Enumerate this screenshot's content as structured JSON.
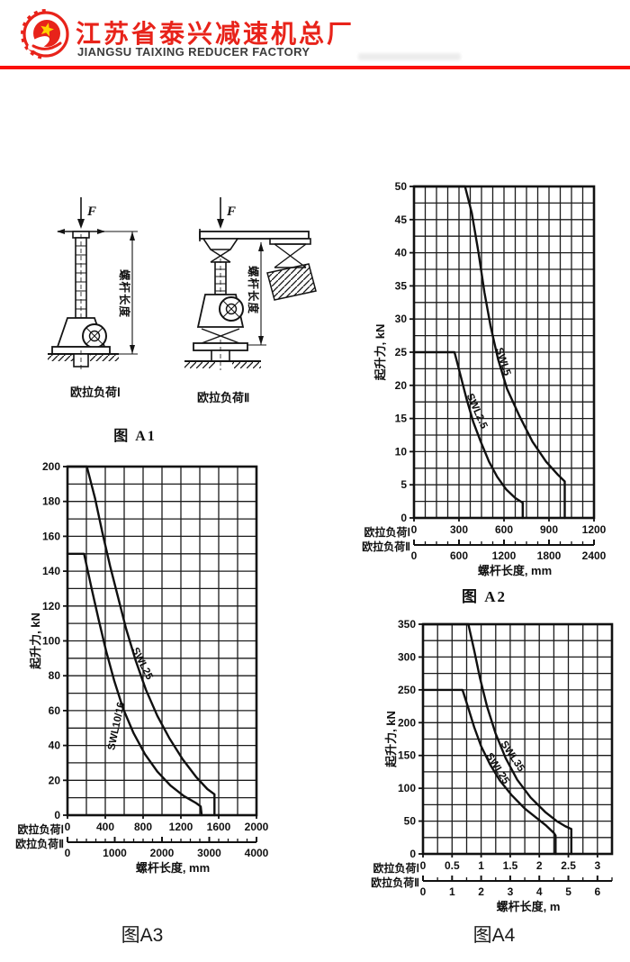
{
  "page": {
    "background": "#ffffff",
    "ink": "#161616"
  },
  "header": {
    "company_name_cn": "江苏省泰兴减速机总厂",
    "company_name_en": "JIANGSU TAIXING REDUCER FACTORY",
    "brand_red": "#e8231a",
    "divider_color": "#fb0f07",
    "en_color": "#3c3c3c",
    "logo_icon": "gear-star-emblem",
    "logo_star_color": "#ffd200"
  },
  "figure_a1": {
    "caption": "图 A1",
    "force_label": "F",
    "screw_length_label": "螺杆长度",
    "left_load_label": "欧拉负荷Ⅰ",
    "right_load_label": "欧拉负荷Ⅱ"
  },
  "chart_data": [
    {
      "id": "A2",
      "type": "line",
      "caption": "图 A2",
      "ylabel": "起升力, kN",
      "xlabel": "螺杆长度, mm",
      "ylim": [
        0,
        50
      ],
      "y_major": 5,
      "y_minor": 2.5,
      "xlim": [
        0,
        1200
      ],
      "x_major": 300,
      "x_minor": 75,
      "axis1_label": "欧拉负荷Ⅰ",
      "axis2_label": "欧拉负荷Ⅱ",
      "axis2": {
        "max": 2400,
        "major": 600,
        "minor": 150
      },
      "grid": true,
      "legend_position": "labels-along-curves",
      "series": [
        {
          "name": "SWL5",
          "points": [
            [
              0,
              50
            ],
            [
              340,
              50
            ],
            [
              385,
              46
            ],
            [
              430,
              40
            ],
            [
              470,
              34
            ],
            [
              510,
              29
            ],
            [
              560,
              24
            ],
            [
              620,
              19.5
            ],
            [
              700,
              15.5
            ],
            [
              790,
              11.5
            ],
            [
              880,
              8.5
            ],
            [
              960,
              6.5
            ],
            [
              1005,
              5.5
            ],
            [
              1005,
              0
            ]
          ]
        },
        {
          "name": "SWL2.5",
          "points": [
            [
              0,
              25
            ],
            [
              270,
              25
            ],
            [
              310,
              21.5
            ],
            [
              350,
              18
            ],
            [
              395,
              14.5
            ],
            [
              445,
              11.5
            ],
            [
              500,
              8.5
            ],
            [
              555,
              6.2
            ],
            [
              615,
              4.3
            ],
            [
              675,
              3
            ],
            [
              725,
              2.3
            ],
            [
              725,
              0
            ]
          ]
        }
      ]
    },
    {
      "id": "A3",
      "type": "line",
      "caption": "图A3",
      "ylabel": "起升力, kN",
      "xlabel": "螺杆长度, mm",
      "ylim": [
        0,
        200
      ],
      "y_major": 20,
      "y_minor": 10,
      "xlim": [
        0,
        2000
      ],
      "x_major": 400,
      "x_minor": 200,
      "axis1_label": "欧拉负荷Ⅰ",
      "axis2_label": "欧拉负荷Ⅱ",
      "axis2": {
        "max": 4000,
        "major": 1000,
        "minor": 200
      },
      "grid": true,
      "legend_position": "labels-along-curves",
      "series": [
        {
          "name": "SWL25",
          "points": [
            [
              0,
              200
            ],
            [
              205,
              200
            ],
            [
              290,
              182
            ],
            [
              370,
              162
            ],
            [
              450,
              143
            ],
            [
              530,
              126
            ],
            [
              620,
              107
            ],
            [
              720,
              89
            ],
            [
              830,
              72
            ],
            [
              950,
              57
            ],
            [
              1080,
              44
            ],
            [
              1220,
              32
            ],
            [
              1360,
              22
            ],
            [
              1480,
              15
            ],
            [
              1555,
              12
            ],
            [
              1555,
              0
            ]
          ]
        },
        {
          "name": "SWL10/16",
          "points": [
            [
              0,
              150
            ],
            [
              175,
              150
            ],
            [
              255,
              130
            ],
            [
              330,
              112
            ],
            [
              410,
              94
            ],
            [
              495,
              77
            ],
            [
              590,
              61
            ],
            [
              700,
              47
            ],
            [
              820,
              35
            ],
            [
              950,
              25
            ],
            [
              1090,
              17
            ],
            [
              1230,
              11
            ],
            [
              1360,
              7
            ],
            [
              1410,
              5
            ],
            [
              1420,
              0
            ]
          ]
        }
      ]
    },
    {
      "id": "A4",
      "type": "line",
      "caption": "图A4",
      "ylabel": "起升力, kN",
      "xlabel": "螺杆长度, m",
      "ylim": [
        0,
        350
      ],
      "y_major": 50,
      "y_minor": 25,
      "xlim": [
        0,
        3.25
      ],
      "x_major": 0.5,
      "x_minor": 0.25,
      "x_tick_max": 3,
      "axis1_label": "欧拉负荷Ⅰ",
      "axis2_label": "欧拉负荷Ⅱ",
      "axis2": {
        "max": 6.5,
        "major": 1,
        "minor": 0.5,
        "tick_max": 6
      },
      "grid": true,
      "legend_position": "labels-along-curves",
      "series": [
        {
          "name": "SWL35",
          "points": [
            [
              0,
              350
            ],
            [
              0.78,
              350
            ],
            [
              0.88,
              310
            ],
            [
              0.98,
              268
            ],
            [
              1.1,
              225
            ],
            [
              1.25,
              183
            ],
            [
              1.42,
              146
            ],
            [
              1.62,
              113
            ],
            [
              1.85,
              86
            ],
            [
              2.1,
              64
            ],
            [
              2.3,
              50
            ],
            [
              2.45,
              42
            ],
            [
              2.55,
              38
            ],
            [
              2.55,
              0
            ]
          ]
        },
        {
          "name": "SWL25",
          "points": [
            [
              0,
              250
            ],
            [
              0.68,
              250
            ],
            [
              0.78,
              222
            ],
            [
              0.88,
              193
            ],
            [
              1.0,
              164
            ],
            [
              1.15,
              137
            ],
            [
              1.32,
              112
            ],
            [
              1.52,
              90
            ],
            [
              1.75,
              69
            ],
            [
              1.95,
              55
            ],
            [
              2.12,
              43
            ],
            [
              2.25,
              32
            ],
            [
              2.28,
              28
            ],
            [
              2.28,
              0
            ]
          ]
        }
      ]
    }
  ]
}
